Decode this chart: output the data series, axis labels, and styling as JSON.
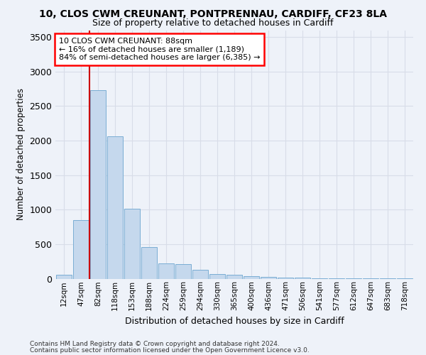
{
  "title_line1": "10, CLOS CWM CREUNANT, PONTPRENNAU, CARDIFF, CF23 8LA",
  "title_line2": "Size of property relative to detached houses in Cardiff",
  "xlabel": "Distribution of detached houses by size in Cardiff",
  "ylabel": "Number of detached properties",
  "bar_color": "#c5d8ed",
  "bar_edge_color": "#7aadd4",
  "vline_color": "#cc0000",
  "annotation_text": "10 CLOS CWM CREUNANT: 88sqm\n← 16% of detached houses are smaller (1,189)\n84% of semi-detached houses are larger (6,385) →",
  "footer_line1": "Contains HM Land Registry data © Crown copyright and database right 2024.",
  "footer_line2": "Contains public sector information licensed under the Open Government Licence v3.0.",
  "categories": [
    "12sqm",
    "47sqm",
    "82sqm",
    "118sqm",
    "153sqm",
    "188sqm",
    "224sqm",
    "259sqm",
    "294sqm",
    "330sqm",
    "365sqm",
    "400sqm",
    "436sqm",
    "471sqm",
    "506sqm",
    "541sqm",
    "577sqm",
    "612sqm",
    "647sqm",
    "683sqm",
    "718sqm"
  ],
  "values": [
    60,
    850,
    2730,
    2060,
    1010,
    455,
    220,
    215,
    130,
    65,
    55,
    40,
    30,
    20,
    20,
    10,
    5,
    5,
    3,
    3,
    3
  ],
  "ylim": [
    0,
    3600
  ],
  "vline_x": 1.5,
  "bg_color": "#eef2f9",
  "grid_color": "#d8dde8",
  "title1_fontsize": 10,
  "title2_fontsize": 9
}
